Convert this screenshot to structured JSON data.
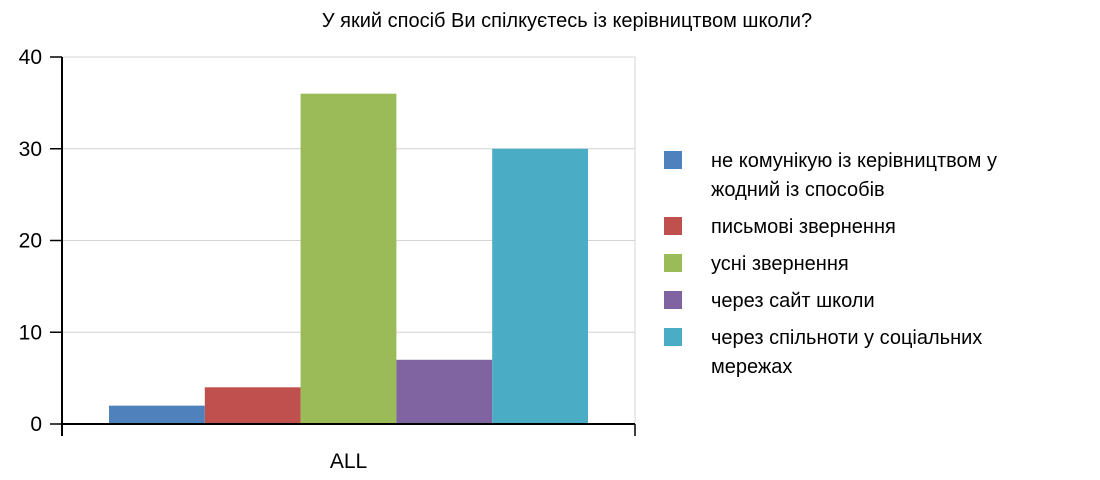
{
  "chart_data": {
    "type": "bar",
    "title": "У який спосіб Ви спілкуєтесь із керівництвом школи?",
    "categories": [
      "ALL"
    ],
    "series": [
      {
        "name": "не комунікую із керівництвом у жодний із способів",
        "legend_lines": [
          "не комунікую із керівництвом у",
          "жодний із способів"
        ],
        "values": [
          2
        ],
        "color": "#4f81bd"
      },
      {
        "name": "письмові звернення",
        "legend_lines": [
          "письмові звернення"
        ],
        "values": [
          4
        ],
        "color": "#c0504d"
      },
      {
        "name": "усні звернення",
        "legend_lines": [
          "усні звернення"
        ],
        "values": [
          36
        ],
        "color": "#9bbb59"
      },
      {
        "name": "через сайт школи",
        "legend_lines": [
          "через сайт школи"
        ],
        "values": [
          7
        ],
        "color": "#8064a2"
      },
      {
        "name": "через спільноти у соціальних мережах",
        "legend_lines": [
          "через спільноти у соціальних",
          "мережах"
        ],
        "values": [
          30
        ],
        "color": "#4bacc6"
      }
    ],
    "y_ticks": [
      "0",
      "10",
      "20",
      "30",
      "40"
    ],
    "ylim": [
      0,
      40
    ],
    "xlabel": "",
    "ylabel": "",
    "grid": true,
    "legend_position": "right"
  }
}
